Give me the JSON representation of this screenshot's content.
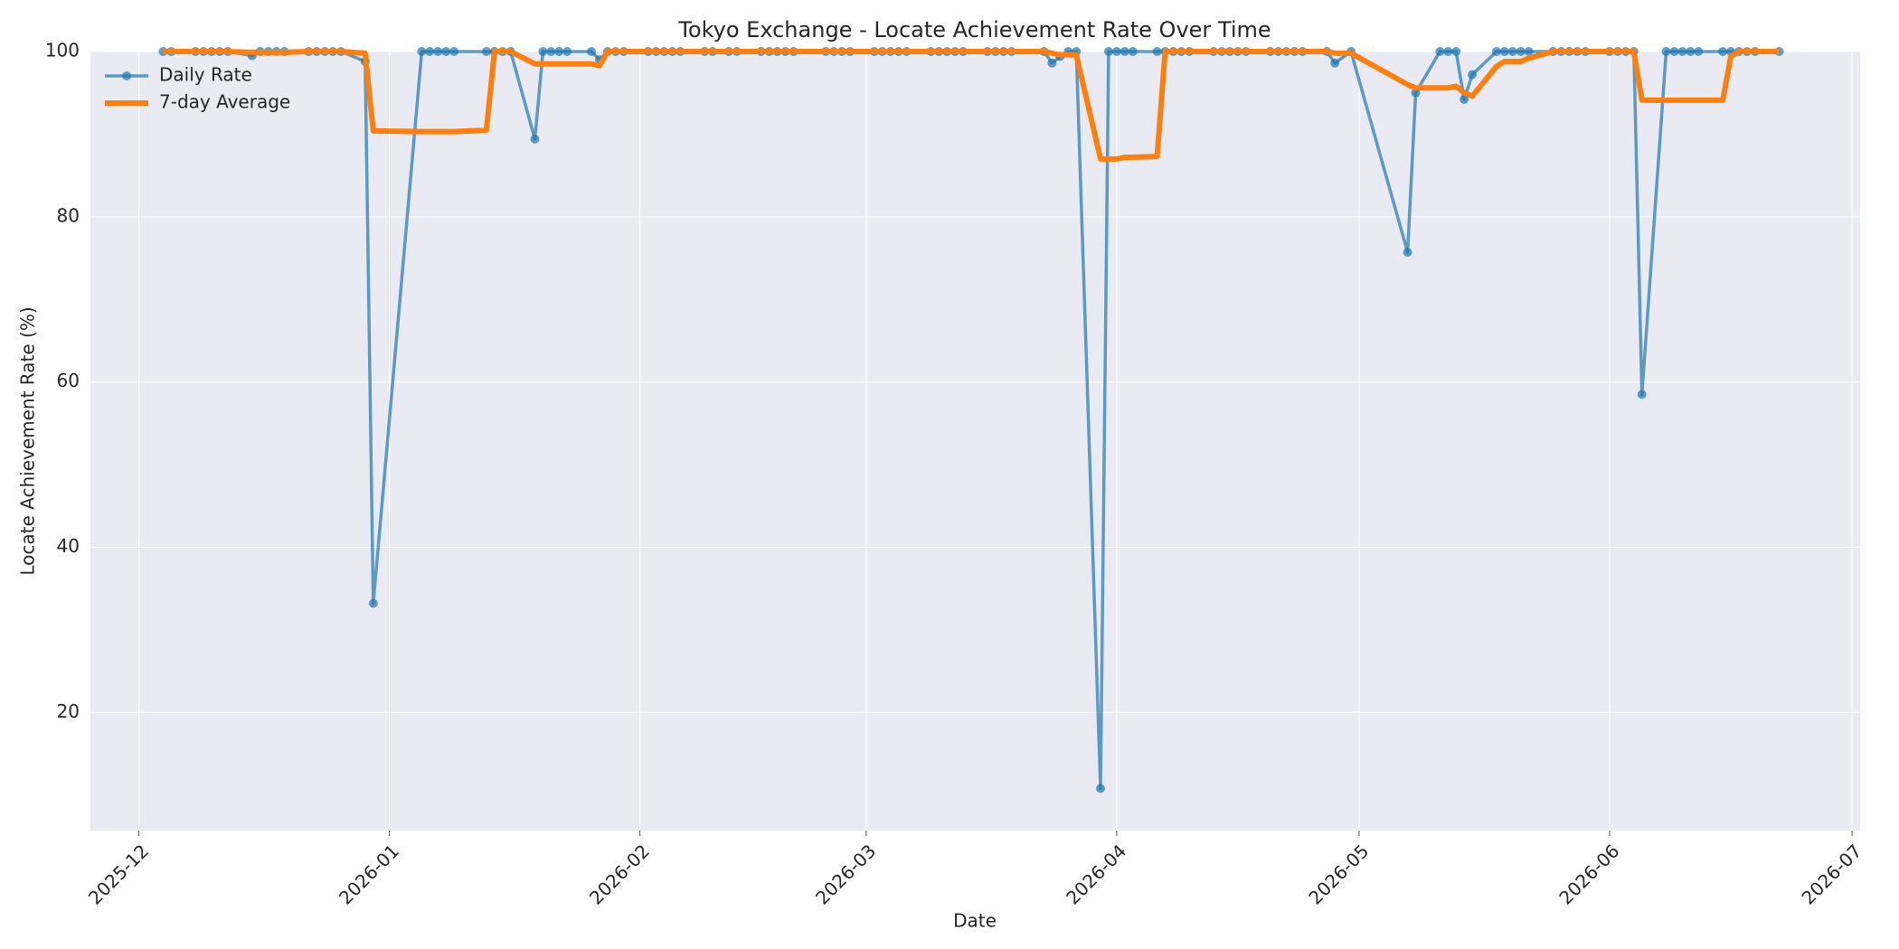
{
  "chart_data": {
    "type": "line",
    "title": "Tokyo Exchange - Locate Achievement Rate Over Time",
    "xlabel": "Date",
    "ylabel": "Locate Achievement Rate (%)",
    "x": [
      "2025-12-04",
      "2025-12-05",
      "2025-12-08",
      "2025-12-09",
      "2025-12-10",
      "2025-12-11",
      "2025-12-12",
      "2025-12-15",
      "2025-12-16",
      "2025-12-17",
      "2025-12-18",
      "2025-12-19",
      "2025-12-22",
      "2025-12-23",
      "2025-12-24",
      "2025-12-25",
      "2025-12-26",
      "2025-12-29",
      "2025-12-30",
      "2026-01-05",
      "2026-01-06",
      "2026-01-07",
      "2026-01-08",
      "2026-01-09",
      "2026-01-13",
      "2026-01-14",
      "2026-01-15",
      "2026-01-16",
      "2026-01-19",
      "2026-01-20",
      "2026-01-21",
      "2026-01-22",
      "2026-01-23",
      "2026-01-26",
      "2026-01-27",
      "2026-01-28",
      "2026-01-29",
      "2026-01-30",
      "2026-02-02",
      "2026-02-03",
      "2026-02-04",
      "2026-02-05",
      "2026-02-06",
      "2026-02-09",
      "2026-02-10",
      "2026-02-12",
      "2026-02-13",
      "2026-02-16",
      "2026-02-17",
      "2026-02-18",
      "2026-02-19",
      "2026-02-20",
      "2026-02-24",
      "2026-02-25",
      "2026-02-26",
      "2026-02-27",
      "2026-03-02",
      "2026-03-03",
      "2026-03-04",
      "2026-03-05",
      "2026-03-06",
      "2026-03-09",
      "2026-03-10",
      "2026-03-11",
      "2026-03-12",
      "2026-03-13",
      "2026-03-16",
      "2026-03-17",
      "2026-03-18",
      "2026-03-19",
      "2026-03-23",
      "2026-03-24",
      "2026-03-25",
      "2026-03-26",
      "2026-03-27",
      "2026-03-30",
      "2026-03-31",
      "2026-04-01",
      "2026-04-02",
      "2026-04-03",
      "2026-04-06",
      "2026-04-07",
      "2026-04-08",
      "2026-04-09",
      "2026-04-10",
      "2026-04-13",
      "2026-04-14",
      "2026-04-15",
      "2026-04-16",
      "2026-04-17",
      "2026-04-20",
      "2026-04-21",
      "2026-04-22",
      "2026-04-23",
      "2026-04-24",
      "2026-04-27",
      "2026-04-28",
      "2026-04-30",
      "2026-05-07",
      "2026-05-08",
      "2026-05-11",
      "2026-05-12",
      "2026-05-13",
      "2026-05-14",
      "2026-05-15",
      "2026-05-18",
      "2026-05-19",
      "2026-05-20",
      "2026-05-21",
      "2026-05-22",
      "2026-05-25",
      "2026-05-26",
      "2026-05-27",
      "2026-05-28",
      "2026-05-29",
      "2026-06-01",
      "2026-06-02",
      "2026-06-03",
      "2026-06-04",
      "2026-06-05",
      "2026-06-08",
      "2026-06-09",
      "2026-06-10",
      "2026-06-11",
      "2026-06-12",
      "2026-06-15",
      "2026-06-16",
      "2026-06-17",
      "2026-06-18",
      "2026-06-19",
      "2026-06-22"
    ],
    "series": [
      {
        "name": "Daily Rate",
        "color": "#1f77b4",
        "marker": true,
        "values": [
          100,
          100,
          100,
          100,
          100,
          100,
          100,
          99.5,
          100,
          100,
          100,
          100,
          100,
          100,
          100,
          100,
          100,
          98.8,
          33.2,
          100,
          100,
          100,
          100,
          100,
          100,
          100,
          100,
          100,
          89.4,
          100,
          100,
          100,
          100,
          100,
          99,
          100,
          100,
          100,
          100,
          100,
          100,
          100,
          100,
          100,
          100,
          100,
          100,
          100,
          100,
          100,
          100,
          100,
          100,
          100,
          100,
          100,
          100,
          100,
          100,
          100,
          100,
          100,
          100,
          100,
          100,
          100,
          100,
          100,
          100,
          100,
          100,
          98.6,
          99.4,
          100,
          100,
          10.8,
          100,
          100,
          100,
          100,
          100,
          100,
          100,
          100,
          100,
          100,
          100,
          100,
          100,
          100,
          100,
          100,
          100,
          100,
          100,
          100,
          98.6,
          100,
          75.7,
          95.0,
          100,
          100,
          100,
          94.2,
          97.2,
          100,
          100,
          100,
          100,
          100,
          100,
          100,
          100,
          100,
          100,
          100,
          100,
          100,
          100,
          58.5,
          100,
          100,
          100,
          100,
          100,
          100,
          100,
          100,
          100,
          100,
          100
        ]
      },
      {
        "name": "7-day Average",
        "color": "#ff7f0e",
        "marker": false,
        "values": [
          100,
          100,
          100,
          100,
          100,
          100,
          100,
          99.9,
          99.9,
          99.9,
          99.9,
          99.9,
          100,
          100,
          100,
          100,
          100,
          99.8,
          90.4,
          90.3,
          90.3,
          90.3,
          90.3,
          90.3,
          90.5,
          100,
          100,
          100,
          98.5,
          98.5,
          98.5,
          98.5,
          98.5,
          98.5,
          98.3,
          100,
          100,
          100,
          100,
          100,
          100,
          100,
          100,
          100,
          100,
          100,
          100,
          100,
          100,
          100,
          100,
          100,
          100,
          100,
          100,
          100,
          100,
          100,
          100,
          100,
          100,
          100,
          100,
          100,
          100,
          100,
          100,
          100,
          100,
          100,
          100,
          99.8,
          99.6,
          99.6,
          99.6,
          87.0,
          87.0,
          87.0,
          87.2,
          87.2,
          87.3,
          100,
          100,
          100,
          100,
          100,
          100,
          100,
          100,
          100,
          100,
          100,
          100,
          100,
          100,
          100,
          99.8,
          99.8,
          96.0,
          95.6,
          95.6,
          95.6,
          95.8,
          95.0,
          94.6,
          98.2,
          98.8,
          98.8,
          98.8,
          99.2,
          100,
          100,
          100,
          100,
          100,
          100,
          100,
          100,
          100,
          94.1,
          94.1,
          94.1,
          94.1,
          94.1,
          94.1,
          94.1,
          99.4,
          100,
          100,
          100,
          100
        ]
      }
    ],
    "xlim": [
      "2025-11-25",
      "2026-07-02"
    ],
    "xticks": [
      "2025-12",
      "2026-01",
      "2026-02",
      "2026-03",
      "2026-04",
      "2026-05",
      "2026-06",
      "2026-07"
    ],
    "ylim": [
      5.7,
      100
    ],
    "yticks": [
      20,
      40,
      60,
      80,
      100
    ],
    "grid": true,
    "legend": "upper left"
  }
}
